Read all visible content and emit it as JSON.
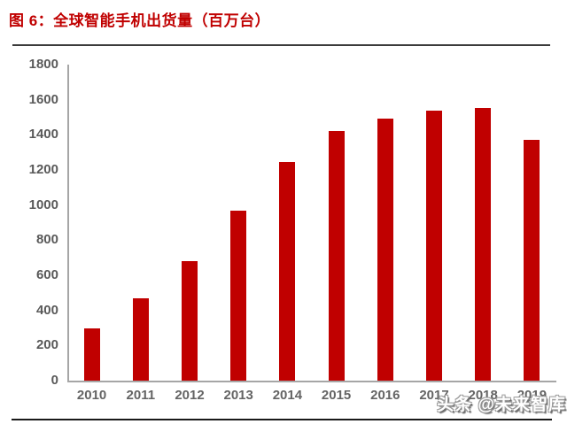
{
  "title": "图 6：全球智能手机出货量（百万台）",
  "watermark": "头条 @未来智库",
  "colors": {
    "title": "#C00000",
    "bar": "#C00000",
    "axis": "#A6A6A6",
    "tick_label": "#595959",
    "divider": "#262626"
  },
  "chart_data": {
    "type": "bar",
    "title": "图 6：全球智能手机出货量（百万台）",
    "categories": [
      "2010",
      "2011",
      "2012",
      "2013",
      "2014",
      "2015",
      "2016",
      "2017",
      "2018",
      "2019"
    ],
    "values": [
      300,
      470,
      680,
      970,
      1245,
      1424,
      1495,
      1536,
      1555,
      1371
    ],
    "xlabel": "",
    "ylabel": "",
    "ylim": [
      0,
      1800
    ],
    "y_ticks": [
      0,
      200,
      400,
      600,
      800,
      1000,
      1200,
      1400,
      1600,
      1800
    ],
    "grid": false,
    "legend_position": "none",
    "bar_color": "#C00000"
  }
}
